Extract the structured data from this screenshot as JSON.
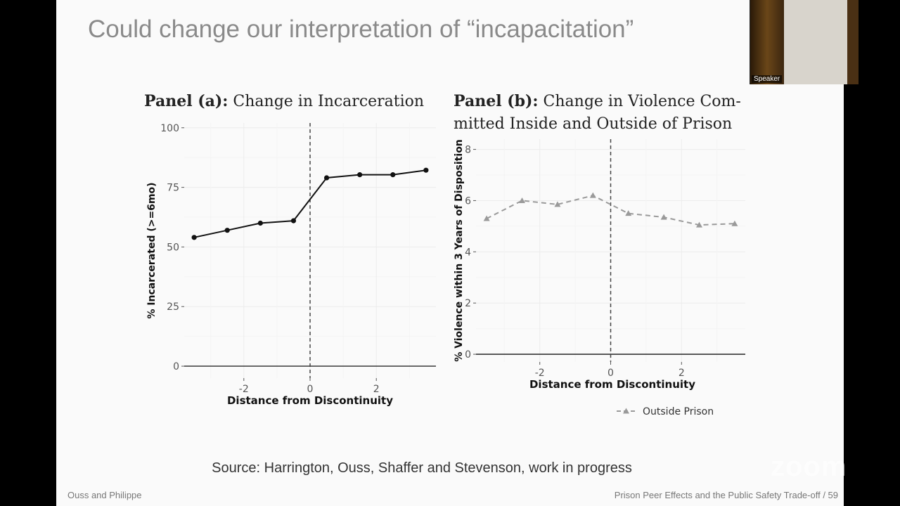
{
  "slide": {
    "title": "Could change our interpretation of “incapacitation”",
    "source": "Source: Harrington, Ouss, Shaffer and Stevenson, work in progress",
    "footer_left": "Ouss and Philippe",
    "footer_right": "Prison Peer Effects and the Public Safety Trade-off / 59"
  },
  "video": {
    "speaker_label": "Speaker"
  },
  "watermark": "zoom",
  "chart_data": [
    {
      "type": "line",
      "panel_label": "Panel (a):",
      "title": "Change in Incarceration",
      "xlabel": "Distance from Discontinuity",
      "ylabel": "% Incarcerated (>=6mo)",
      "xlim": [
        -3.8,
        3.8
      ],
      "ylim": [
        -5,
        102
      ],
      "xticks": [
        -2,
        0,
        2
      ],
      "yticks": [
        0,
        25,
        50,
        75,
        100
      ],
      "grid": true,
      "discontinuity_x": 0,
      "series": [
        {
          "x": [
            -3.5,
            -2.5,
            -1.5,
            -0.5,
            0.5,
            1.5,
            2.5,
            3.5
          ],
          "y": [
            54,
            57,
            60,
            61,
            79,
            80.3,
            80.3,
            82.2
          ],
          "color": "#111111",
          "marker": "circle",
          "dashed": false
        }
      ]
    },
    {
      "type": "line",
      "panel_label": "Panel (b):",
      "title": "Change in Violence Committed Inside and Outside of Prison",
      "title_lines": [
        "Change in Violence Com-",
        "mitted Inside and Outside of Prison"
      ],
      "xlabel": "Distance from Discontinuity",
      "ylabel": "% Violence within 3 Years of Disposition",
      "xlim": [
        -3.8,
        3.8
      ],
      "ylim": [
        -0.3,
        8.4
      ],
      "xticks": [
        -2,
        0,
        2
      ],
      "yticks": [
        0,
        2,
        4,
        6,
        8
      ],
      "grid": true,
      "discontinuity_x": 0,
      "legend_position": "bottom",
      "series": [
        {
          "name": "Outside Prison",
          "x": [
            -3.5,
            -2.5,
            -1.5,
            -0.5,
            0.5,
            1.5,
            2.5,
            3.5
          ],
          "y": [
            5.3,
            6.0,
            5.85,
            6.2,
            5.5,
            5.35,
            5.05,
            5.1
          ],
          "color": "#9a9a9a",
          "marker": "triangle",
          "dashed": true
        }
      ]
    }
  ]
}
